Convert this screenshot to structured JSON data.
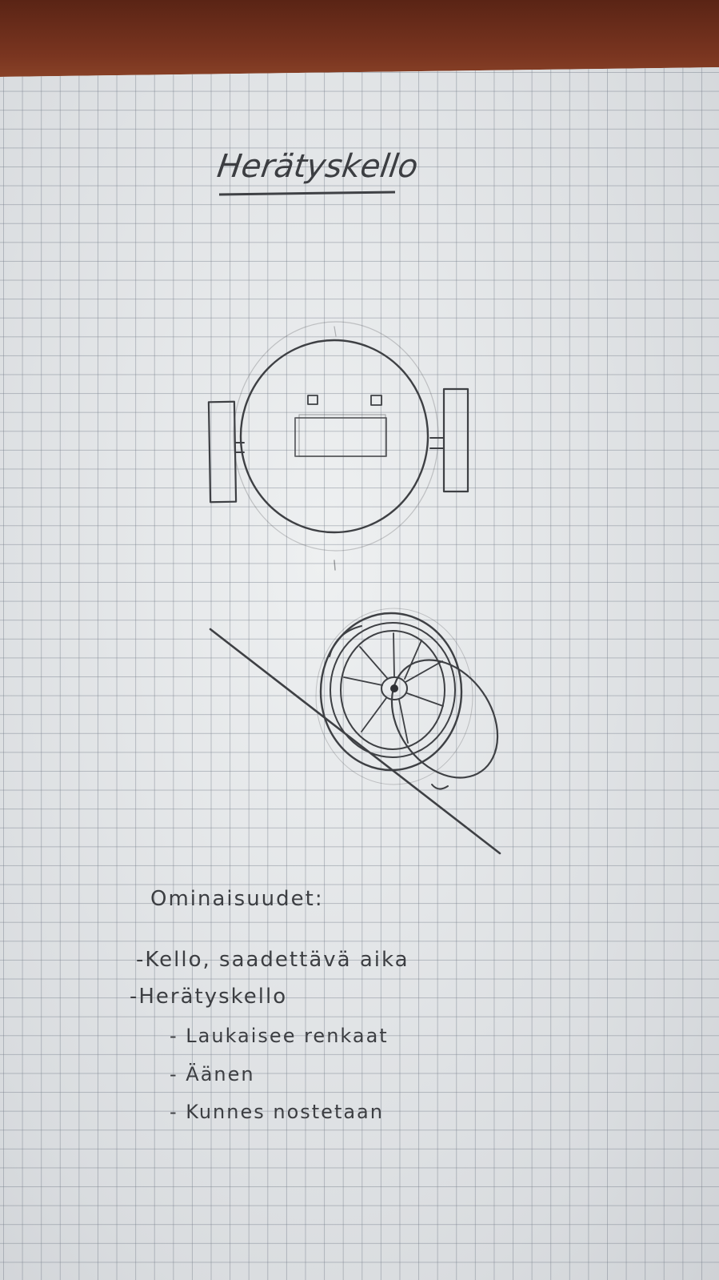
{
  "title": "Herätyskello",
  "features": {
    "heading": "Ominaisuudet:",
    "items": [
      "-Kello, saadettävä aika",
      "-Herätyskello",
      "- Laukaisee renkaat",
      "- Äänen",
      "- Kunnes nostetaan"
    ]
  },
  "colors": {
    "paper": "#e4e6e8",
    "grid": "#78808c",
    "pencil": "#3c3e42",
    "table": "#6b2e1c"
  }
}
